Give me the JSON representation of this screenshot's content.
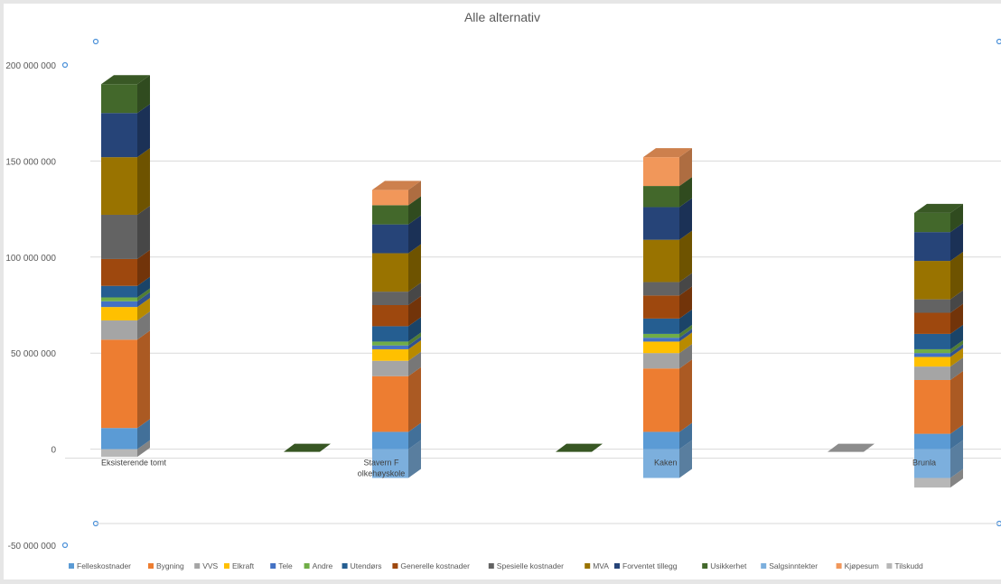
{
  "chart_data": {
    "type": "bar",
    "stacked": true,
    "three_d": true,
    "title": "Alle alternativ",
    "categories": [
      "Eksisterende tomt",
      "Stavern F olkehøyskole",
      "Kaken",
      "Brunla"
    ],
    "category_labels": [
      [
        "Eksisterende tomt"
      ],
      [
        "Stavern F",
        "olkehøyskole"
      ],
      [
        "Kaken"
      ],
      [
        "Brunla"
      ]
    ],
    "ylim": [
      -50000000,
      200000000
    ],
    "yticks": [
      {
        "value": 200000000,
        "label": "200 000 000"
      },
      {
        "value": 150000000,
        "label": "150 000 000"
      },
      {
        "value": 100000000,
        "label": "100 000 000"
      },
      {
        "value": 50000000,
        "label": "50 000 000"
      },
      {
        "value": 0,
        "label": "0"
      },
      {
        "value": -50000000,
        "label": "-50 000 000"
      }
    ],
    "grid": true,
    "legend_position": "bottom",
    "series": [
      {
        "name": "Felleskostnader",
        "color": "#5b9bd5",
        "values": [
          11000000,
          9000000,
          9000000,
          8000000
        ]
      },
      {
        "name": "Bygning",
        "color": "#ed7d31",
        "values": [
          46000000,
          29000000,
          33000000,
          28000000
        ]
      },
      {
        "name": "VVS",
        "color": "#a5a5a5",
        "values": [
          10000000,
          8000000,
          8000000,
          7000000
        ]
      },
      {
        "name": "Elkraft",
        "color": "#ffc000",
        "values": [
          7000000,
          6000000,
          6000000,
          5000000
        ]
      },
      {
        "name": "Tele",
        "color": "#4472c4",
        "values": [
          3000000,
          2000000,
          2000000,
          2000000
        ]
      },
      {
        "name": "Andre",
        "color": "#70ad47",
        "values": [
          2000000,
          2000000,
          2000000,
          2000000
        ]
      },
      {
        "name": "Utendørs",
        "color": "#255e91",
        "values": [
          6000000,
          8000000,
          8000000,
          8000000
        ]
      },
      {
        "name": "Generelle kostnader",
        "color": "#9e480e",
        "values": [
          14000000,
          11000000,
          12000000,
          11000000
        ]
      },
      {
        "name": "Spesielle kostnader",
        "color": "#636363",
        "values": [
          23000000,
          7000000,
          7000000,
          7000000
        ]
      },
      {
        "name": "MVA",
        "color": "#997300",
        "values": [
          30000000,
          20000000,
          22000000,
          20000000
        ]
      },
      {
        "name": "Forventet tillegg",
        "color": "#264478",
        "values": [
          23000000,
          15000000,
          17000000,
          15000000
        ]
      },
      {
        "name": "Usikkerhet",
        "color": "#43682b",
        "values": [
          15000000,
          10000000,
          11000000,
          10000000
        ]
      },
      {
        "name": "Salgsinntekter",
        "color": "#7cafdd",
        "values": [
          0,
          -15000000,
          -15000000,
          -15000000
        ]
      },
      {
        "name": "Kjøpesum",
        "color": "#f1975a",
        "values": [
          0,
          8000000,
          15000000,
          0
        ]
      },
      {
        "name": "Tilskudd",
        "color": "#b7b7b7",
        "values": [
          -4000000,
          0,
          0,
          -5000000
        ]
      }
    ]
  }
}
